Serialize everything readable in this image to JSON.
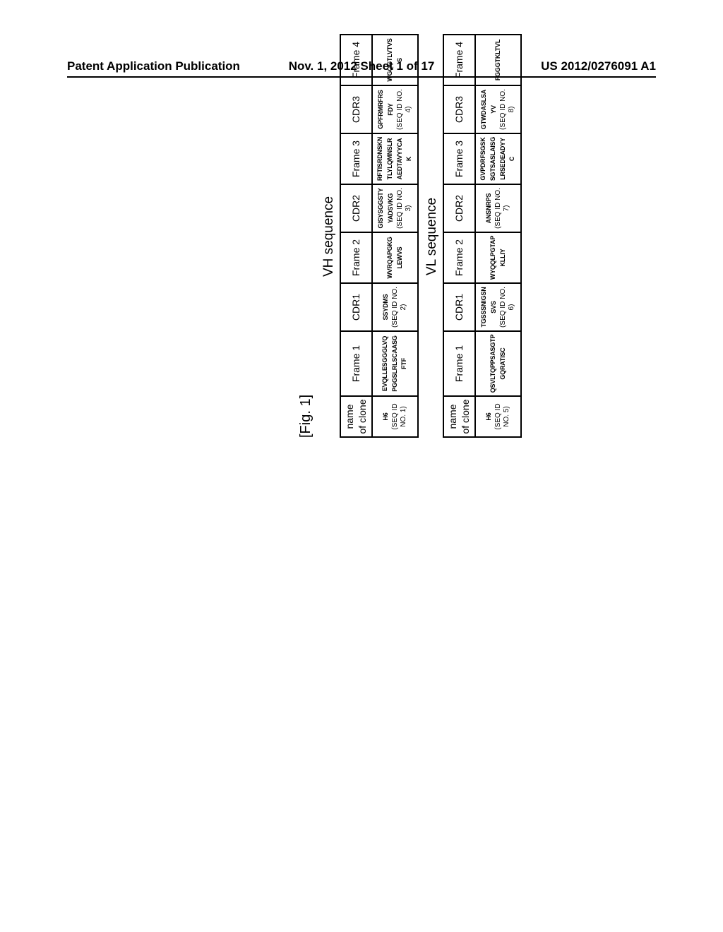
{
  "header": {
    "left": "Patent Application Publication",
    "center": "Nov. 1, 2012  Sheet 1 of 17",
    "right": "US 2012/0276091 A1"
  },
  "figure": {
    "label": "[Fig. 1]",
    "vh": {
      "title": "VH sequence",
      "headers": [
        "name of clone",
        "Frame 1",
        "CDR1",
        "Frame 2",
        "CDR2",
        "Frame 3",
        "CDR3",
        "Frame 4"
      ],
      "row": {
        "clone": "H6",
        "clone_seqid": "(SEQ ID NO. 1)",
        "frame1": "EVQLLESGGGLVQPGGSLRLSCAASGFTF",
        "cdr1": "SSYDMS",
        "cdr1_seqid": "(SEQ ID NO. 2)",
        "frame2": "WVRQAPGKGLEWVS",
        "cdr2": "GISYSGGSTYYADSVKG",
        "cdr2_seqid": "(SEQ ID NO. 3)",
        "frame3": "RFTISRDNSKNTLYLQMNSLRAEDTAVYYCAK",
        "cdr3": "GPFRMRFRSFDY",
        "cdr3_seqid": "(SEQ ID NO. 4)",
        "frame4": "WGQGTLVTVSS"
      }
    },
    "vl": {
      "title": "VL sequence",
      "headers": [
        "name of clone",
        "Frame 1",
        "CDR1",
        "Frame 2",
        "CDR2",
        "Frame 3",
        "CDR3",
        "Frame 4"
      ],
      "row": {
        "clone": "H6",
        "clone_seqid": "(SEQ ID NO. 5)",
        "frame1": "QSVLTQPPSASGTPGQRATISC",
        "cdr1": "TGSSSNIGSNSVS",
        "cdr1_seqid": "(SEQ ID NO. 6)",
        "frame2": "WYQQLPGTAPKLLIY",
        "cdr2": "ANSNRPS",
        "cdr2_seqid": "(SEQ ID NO. 7)",
        "frame3": "GVPDRFSGSKSGTSASLAISGLRSEDEADYYC",
        "cdr3": "GTWDASLSAYV",
        "cdr3_seqid": "(SEQ ID NO. 8)",
        "frame4": "FGGGTKLTVL"
      }
    }
  },
  "style": {
    "page_bg": "#ffffff",
    "text_color": "#000000",
    "border_color": "#000000",
    "header_fontsize": 17,
    "figlabel_fontsize": 20,
    "table_header_fontsize": 14,
    "cell_fontsize": 11,
    "seqval_fontsize": 9,
    "seqid_fontsize": 10,
    "rotation_deg": -90
  }
}
